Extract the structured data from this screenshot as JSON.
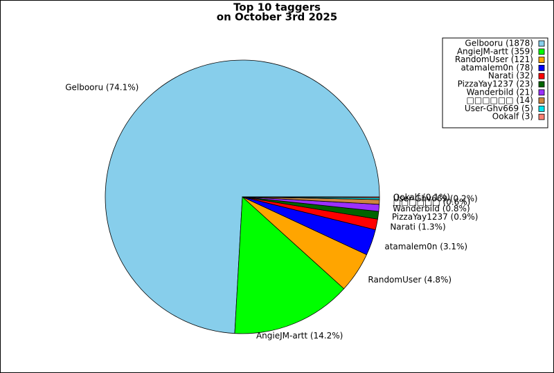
{
  "chart_data": {
    "type": "pie",
    "title": "Top 10 taggers",
    "subtitle": "on October 3rd 2025",
    "values": [
      1878,
      359,
      121,
      78,
      32,
      23,
      21,
      14,
      5,
      3
    ],
    "wedge_labels": [
      "Gelbooru (74.1%)",
      "AngieJM-artt (14.2%)",
      "RandomUser (4.8%)",
      "atamalem0n (3.1%)",
      "Narati (1.3%)",
      "PizzaYay1237 (0.9%)",
      "Wanderbild (0.8%)",
      "□□□□□□ (0.6%)",
      "User-Ghv669 (0.2%)",
      "Ookalf (0.1%)"
    ],
    "legend_labels": [
      "Gelbooru (1878)",
      "AngieJM-artt (359)",
      "RandomUser (121)",
      "atamalem0n (78)",
      "Narati (32)",
      "PizzaYay1237 (23)",
      "Wanderbild (21)",
      "□□□□□□ (14)",
      "User-Ghv669 (5)",
      "Ookalf (3)"
    ],
    "colors": [
      "#87ceeb",
      "#00ff00",
      "#ffa500",
      "#0000ff",
      "#ff0000",
      "#006400",
      "#9b30ff",
      "#cd853f",
      "#00e5ee",
      "#fa8072"
    ],
    "legend_position": "upper right",
    "start_angle": 0,
    "direction": "counterclockwise"
  }
}
